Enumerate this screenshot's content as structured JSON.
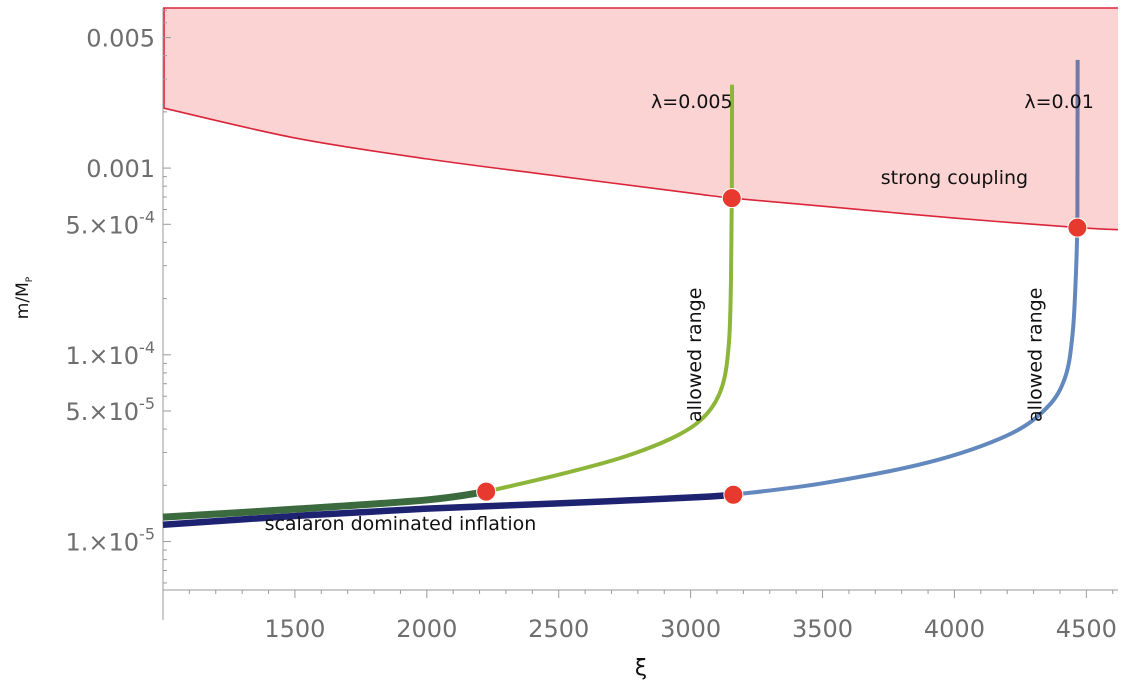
{
  "chart_data": {
    "type": "line",
    "xlabel": "ξ",
    "ylabel": "m/M",
    "ylabel_sub": "P",
    "x_scale": "linear",
    "y_scale": "log",
    "xlim": [
      1000,
      4620
    ],
    "ylim": [
      5.5e-06,
      0.0072
    ],
    "x_ticks": [
      {
        "v": 1500,
        "label": "1500"
      },
      {
        "v": 2000,
        "label": "2000"
      },
      {
        "v": 2500,
        "label": "2500"
      },
      {
        "v": 3000,
        "label": "3000"
      },
      {
        "v": 3500,
        "label": "3500"
      },
      {
        "v": 4000,
        "label": "4000"
      },
      {
        "v": 4500,
        "label": "4500"
      }
    ],
    "y_ticks": [
      {
        "v": 0.005,
        "base": "0.005",
        "exp": ""
      },
      {
        "v": 0.001,
        "base": "0.001",
        "exp": ""
      },
      {
        "v": 0.0005,
        "base": "5.×10",
        "exp": "-4"
      },
      {
        "v": 0.0001,
        "base": "1.×10",
        "exp": "-4"
      },
      {
        "v": 5e-05,
        "base": "5.×10",
        "exp": "-5"
      },
      {
        "v": 1e-05,
        "base": "1.×10",
        "exp": "-5"
      }
    ],
    "regions": [
      {
        "label": "strong coupling",
        "fill": "#fcd3d3",
        "stroke": "#d9263a",
        "boundary": [
          [
            1000,
            0.0021
          ],
          [
            1500,
            0.00145
          ],
          [
            2000,
            0.00112
          ],
          [
            2500,
            0.000905
          ],
          [
            3000,
            0.000735
          ],
          [
            3158,
            0.00069
          ],
          [
            3500,
            0.000625
          ],
          [
            4000,
            0.00054
          ],
          [
            4467,
            0.00048
          ],
          [
            4620,
            0.000468
          ]
        ]
      }
    ],
    "series": [
      {
        "color": "#8db53a",
        "points": [
          [
            2225,
            1.85e-05
          ],
          [
            2500,
            2.28e-05
          ],
          [
            2750,
            2.85e-05
          ],
          [
            2950,
            3.7e-05
          ],
          [
            3060,
            4.8e-05
          ],
          [
            3120,
            6.8e-05
          ],
          [
            3145,
            0.000115
          ],
          [
            3153,
            0.00025
          ],
          [
            3156,
            0.00069
          ],
          [
            3157,
            0.0028
          ]
        ]
      },
      {
        "color": "#3c6a3f",
        "points": [
          [
            1000,
            1.35e-05
          ],
          [
            1500,
            1.49e-05
          ],
          [
            2000,
            1.67e-05
          ],
          [
            2225,
            1.85e-05
          ]
        ]
      },
      {
        "color": "#6288be",
        "points": [
          [
            3162,
            1.78e-05
          ],
          [
            3500,
            2.05e-05
          ],
          [
            3900,
            2.65e-05
          ],
          [
            4200,
            3.7e-05
          ],
          [
            4350,
            5.2e-05
          ],
          [
            4420,
            7.6e-05
          ],
          [
            4448,
            0.00013
          ],
          [
            4460,
            0.00026
          ],
          [
            4466,
            0.00048
          ]
        ]
      },
      {
        "color": "#6f7aa8",
        "points": [
          [
            4466,
            0.00048
          ],
          [
            4467,
            0.0038
          ]
        ]
      },
      {
        "color": "#1d2370",
        "points": [
          [
            1000,
            1.23e-05
          ],
          [
            1500,
            1.37e-05
          ],
          [
            2000,
            1.5e-05
          ],
          [
            2500,
            1.6e-05
          ],
          [
            3000,
            1.72e-05
          ],
          [
            3162,
            1.78e-05
          ]
        ]
      }
    ],
    "markers": [
      [
        2225,
        1.85e-05
      ],
      [
        3162,
        1.78e-05
      ],
      [
        3156,
        0.00069
      ],
      [
        4466,
        0.00048
      ]
    ],
    "annotations": [
      {
        "text": "λ=0.005",
        "x": 2850,
        "y": 0.0021,
        "rotate": 0
      },
      {
        "text": "λ=0.01",
        "x": 4265,
        "y": 0.0021,
        "rotate": 0
      },
      {
        "text": "strong coupling",
        "x": 4000,
        "y": 0.00082,
        "rotate": 0
      },
      {
        "text": "allowed range",
        "x": 3040,
        "y": 0.0001,
        "rotate": -90
      },
      {
        "text": "allowed range",
        "x": 4330,
        "y": 0.0001,
        "rotate": -90
      },
      {
        "text": "scalaron dominated inflation",
        "x": 1900,
        "y": 1.15e-05,
        "rotate": 0
      }
    ]
  }
}
